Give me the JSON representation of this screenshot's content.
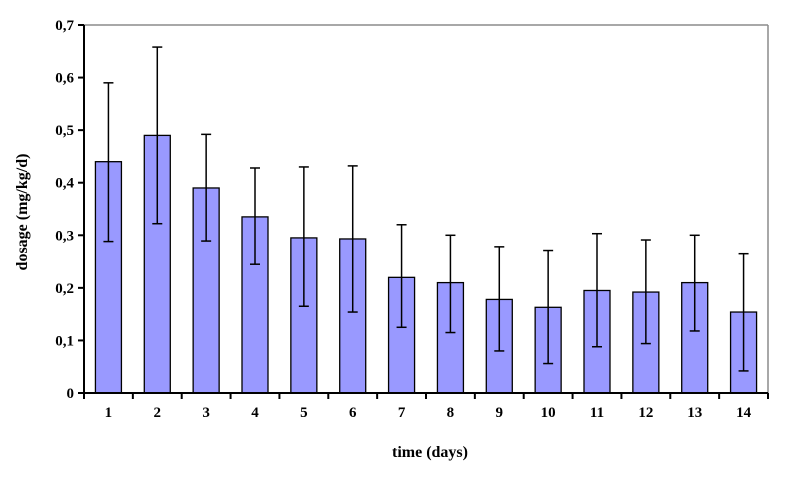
{
  "chart_data": {
    "type": "bar",
    "xlabel": "time (days)",
    "ylabel": "dosage (mg/kg/d)",
    "categories": [
      "1",
      "2",
      "3",
      "4",
      "5",
      "6",
      "7",
      "8",
      "9",
      "10",
      "11",
      "12",
      "13",
      "14"
    ],
    "values": [
      0.44,
      0.49,
      0.39,
      0.335,
      0.295,
      0.293,
      0.22,
      0.21,
      0.178,
      0.163,
      0.195,
      0.192,
      0.21,
      0.154
    ],
    "error_low": [
      0.288,
      0.322,
      0.289,
      0.245,
      0.165,
      0.154,
      0.125,
      0.115,
      0.08,
      0.056,
      0.088,
      0.094,
      0.118,
      0.042
    ],
    "error_high": [
      0.59,
      0.658,
      0.492,
      0.428,
      0.43,
      0.432,
      0.32,
      0.3,
      0.278,
      0.271,
      0.303,
      0.291,
      0.3,
      0.265
    ],
    "ylim": [
      0,
      0.7
    ],
    "y_tick_labels": [
      "0",
      "0,1",
      "0,2",
      "0,3",
      "0,4",
      "0,5",
      "0,6",
      "0,7"
    ],
    "grid": "off",
    "legend": "none",
    "bar_color": "#9999FF",
    "bar_border_color": "#000000",
    "error_bar_color": "#000000",
    "axis_color": "#000000",
    "plot_border_color": "#8C8C8C",
    "background": "#FFFFFF"
  }
}
